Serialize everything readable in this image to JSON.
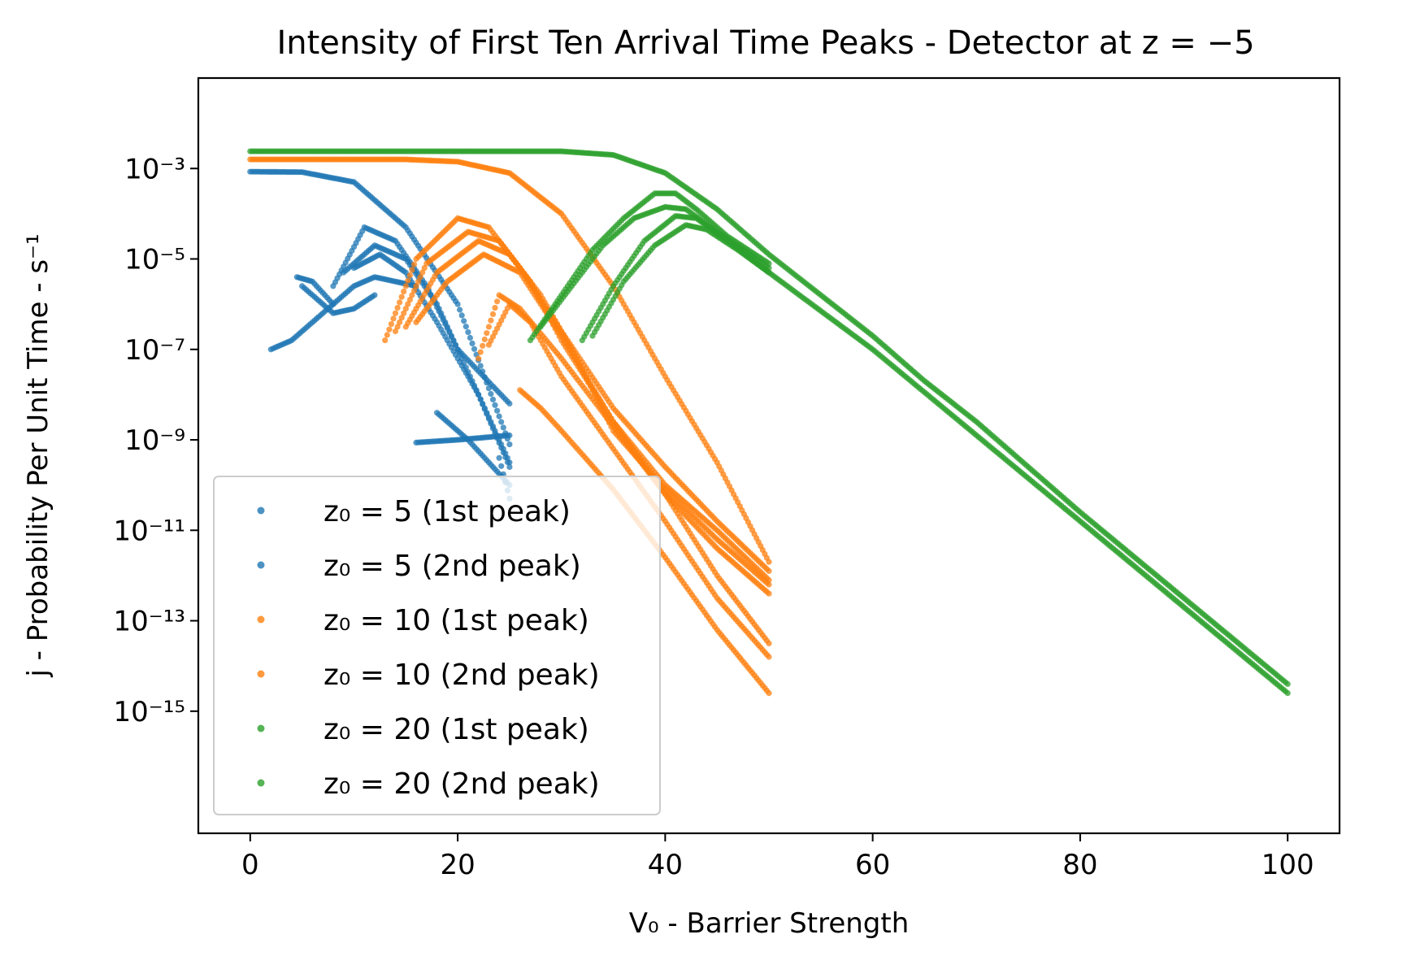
{
  "chart_data": {
    "type": "scatter",
    "title": "Intensity of First Ten Arrival Time Peaks - Detector at z = −5",
    "xlabel": "V₀ - Barrier Strength",
    "ylabel": "j - Probability Per Unit Time - s⁻¹",
    "xlim": [
      -5,
      105
    ],
    "ylim_log10": [
      -17.7,
      -1.0
    ],
    "y_scale": "log",
    "x_ticks": [
      0,
      20,
      40,
      60,
      80,
      100
    ],
    "x_tick_labels": [
      "0",
      "20",
      "40",
      "60",
      "80",
      "100"
    ],
    "y_ticks_log10": [
      -3,
      -5,
      -7,
      -9,
      -11,
      -13,
      -15
    ],
    "y_tick_labels": [
      "10⁻³",
      "10⁻⁵",
      "10⁻⁷",
      "10⁻⁹",
      "10⁻¹¹",
      "10⁻¹³",
      "10⁻¹⁵"
    ],
    "grid": false,
    "legend_position": "lower left",
    "series": [
      {
        "name": "z₀ = 5 (1st peak)",
        "color": "#1f77b4",
        "curves": [
          [
            [
              0,
              -3.07
            ],
            [
              5,
              -3.08
            ],
            [
              10,
              -3.3
            ],
            [
              15,
              -4.3
            ],
            [
              20,
              -6.0
            ],
            [
              25,
              -9.1
            ]
          ],
          [
            [
              8,
              -5.6
            ],
            [
              11,
              -4.3
            ],
            [
              14,
              -4.6
            ],
            [
              17,
              -5.6
            ],
            [
              20,
              -7.0
            ],
            [
              25,
              -8.2
            ]
          ],
          [
            [
              9,
              -5.3
            ],
            [
              12,
              -4.7
            ],
            [
              15,
              -5.0
            ],
            [
              18,
              -6.0
            ],
            [
              21,
              -7.5
            ],
            [
              25,
              -9.5
            ]
          ],
          [
            [
              10,
              -5.2
            ],
            [
              12.5,
              -4.9
            ],
            [
              15,
              -5.3
            ],
            [
              18,
              -6.4
            ],
            [
              22,
              -8.0
            ],
            [
              25,
              -9.6
            ]
          ],
          [
            [
              4.5,
              -5.4
            ],
            [
              6,
              -5.5
            ],
            [
              8,
              -6.0
            ],
            [
              10,
              -5.6
            ],
            [
              12,
              -5.4
            ],
            [
              16,
              -5.6
            ]
          ]
        ]
      },
      {
        "name": "z₀ = 5 (2nd peak)",
        "color": "#1f77b4",
        "curves": [
          [
            [
              2,
              -7.0
            ],
            [
              4,
              -6.8
            ],
            [
              6,
              -6.4
            ],
            [
              8,
              -6.0
            ]
          ],
          [
            [
              5,
              -5.6
            ],
            [
              8,
              -6.2
            ],
            [
              10,
              -6.1
            ],
            [
              12,
              -5.8
            ]
          ],
          [
            [
              16,
              -9.06
            ],
            [
              20,
              -9.0
            ],
            [
              25,
              -8.9
            ]
          ],
          [
            [
              18,
              -8.4
            ],
            [
              21,
              -9.0
            ],
            [
              23,
              -9.5
            ],
            [
              25,
              -10.0
            ]
          ],
          [
            [
              24,
              -9.4
            ],
            [
              25,
              -10.3
            ]
          ]
        ]
      },
      {
        "name": "z₀ = 10 (1st peak)",
        "color": "#ff7f0e",
        "curves": [
          [
            [
              0,
              -2.8
            ],
            [
              15,
              -2.8
            ],
            [
              20,
              -2.85
            ],
            [
              25,
              -3.1
            ],
            [
              30,
              -4.0
            ],
            [
              35,
              -5.6
            ],
            [
              40,
              -7.6
            ],
            [
              45,
              -9.5
            ],
            [
              50,
              -11.7
            ]
          ],
          [
            [
              13,
              -6.8
            ],
            [
              16,
              -5.0
            ],
            [
              20,
              -4.1
            ],
            [
              23,
              -4.3
            ],
            [
              26,
              -5.2
            ],
            [
              30,
              -6.6
            ],
            [
              35,
              -8.3
            ],
            [
              40,
              -9.6
            ],
            [
              45,
              -10.8
            ],
            [
              50,
              -11.9
            ]
          ],
          [
            [
              14,
              -6.6
            ],
            [
              17,
              -5.1
            ],
            [
              21,
              -4.4
            ],
            [
              24,
              -4.6
            ],
            [
              27,
              -5.5
            ],
            [
              30,
              -6.8
            ],
            [
              35,
              -8.6
            ],
            [
              40,
              -10.0
            ],
            [
              45,
              -11.0
            ],
            [
              50,
              -12.1
            ]
          ],
          [
            [
              15,
              -6.5
            ],
            [
              18,
              -5.3
            ],
            [
              22,
              -4.6
            ],
            [
              25,
              -4.9
            ],
            [
              28,
              -5.8
            ],
            [
              31,
              -7.0
            ],
            [
              35,
              -8.8
            ],
            [
              40,
              -10.1
            ],
            [
              45,
              -11.2
            ],
            [
              50,
              -12.2
            ]
          ],
          [
            [
              16,
              -6.4
            ],
            [
              19,
              -5.5
            ],
            [
              22.5,
              -4.9
            ],
            [
              26,
              -5.3
            ],
            [
              30,
              -6.7
            ],
            [
              35,
              -8.6
            ],
            [
              40,
              -10.2
            ],
            [
              45,
              -11.4
            ],
            [
              50,
              -12.4
            ]
          ]
        ]
      },
      {
        "name": "z₀ = 10 (2nd peak)",
        "color": "#ff7f0e",
        "curves": [
          [
            [
              22,
              -7.2
            ],
            [
              24,
              -5.8
            ],
            [
              26,
              -6.1
            ],
            [
              30,
              -7.2
            ],
            [
              35,
              -8.7
            ],
            [
              40,
              -10.2
            ],
            [
              45,
              -12.0
            ],
            [
              50,
              -13.5
            ]
          ],
          [
            [
              23,
              -6.9
            ],
            [
              25,
              -6.0
            ],
            [
              27,
              -6.4
            ],
            [
              30,
              -7.6
            ],
            [
              35,
              -9.2
            ],
            [
              40,
              -10.8
            ],
            [
              45,
              -12.5
            ],
            [
              50,
              -13.8
            ]
          ],
          [
            [
              26,
              -7.9
            ],
            [
              28,
              -8.3
            ],
            [
              30,
              -8.8
            ],
            [
              35,
              -10.1
            ],
            [
              40,
              -11.6
            ],
            [
              45,
              -13.2
            ],
            [
              50,
              -14.6
            ]
          ]
        ]
      },
      {
        "name": "z₀ = 20 (1st peak)",
        "color": "#2ca02c",
        "curves": [
          [
            [
              0,
              -2.62
            ],
            [
              20,
              -2.62
            ],
            [
              30,
              -2.62
            ],
            [
              35,
              -2.7
            ],
            [
              40,
              -3.1
            ],
            [
              45,
              -3.9
            ],
            [
              50,
              -4.9
            ],
            [
              55,
              -5.8
            ],
            [
              60,
              -6.7
            ],
            [
              65,
              -7.7
            ],
            [
              70,
              -8.6
            ],
            [
              80,
              -10.6
            ],
            [
              90,
              -12.5
            ],
            [
              100,
              -14.4
            ]
          ],
          [
            [
              27,
              -6.8
            ],
            [
              30,
              -5.8
            ],
            [
              33,
              -4.8
            ],
            [
              36,
              -4.1
            ],
            [
              39,
              -3.55
            ],
            [
              41,
              -3.55
            ],
            [
              43,
              -3.9
            ],
            [
              46,
              -4.5
            ],
            [
              50,
              -5.1
            ]
          ],
          [
            [
              28,
              -6.5
            ],
            [
              31,
              -5.6
            ],
            [
              34,
              -4.7
            ],
            [
              37,
              -4.1
            ],
            [
              40,
              -3.85
            ],
            [
              42,
              -3.9
            ],
            [
              45,
              -4.4
            ],
            [
              50,
              -5.2
            ]
          ]
        ]
      },
      {
        "name": "z₀ = 20 (2nd peak)",
        "color": "#2ca02c",
        "curves": [
          [
            [
              32,
              -6.8
            ],
            [
              35,
              -5.6
            ],
            [
              38,
              -4.6
            ],
            [
              41,
              -4.05
            ],
            [
              43,
              -4.1
            ],
            [
              46,
              -4.6
            ],
            [
              50,
              -5.3
            ]
          ],
          [
            [
              33,
              -6.7
            ],
            [
              36,
              -5.5
            ],
            [
              39,
              -4.7
            ],
            [
              42,
              -4.25
            ],
            [
              44,
              -4.35
            ],
            [
              47,
              -4.8
            ],
            [
              50,
              -5.3
            ],
            [
              60,
              -7.0
            ],
            [
              70,
              -8.9
            ],
            [
              80,
              -10.8
            ],
            [
              90,
              -12.7
            ],
            [
              100,
              -14.6
            ]
          ]
        ]
      }
    ]
  }
}
